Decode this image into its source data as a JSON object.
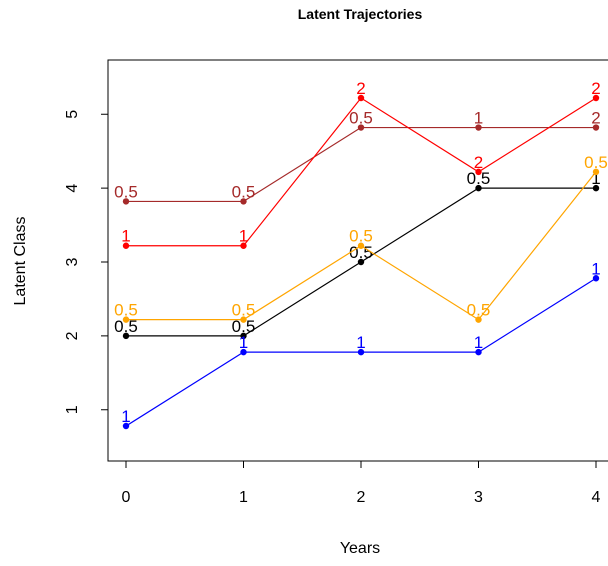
{
  "chart_data": {
    "type": "line",
    "title": "Latent Trajectories",
    "xlabel": "Years",
    "ylabel": "Latent Class",
    "xlim": [
      0,
      4
    ],
    "ylim": [
      0.78,
      5.22
    ],
    "x_ticks": [
      "0",
      "1",
      "2",
      "3",
      "4"
    ],
    "y_ticks": [
      "1",
      "2",
      "3",
      "4",
      "5"
    ],
    "grid": false,
    "legend": "none",
    "series": [
      {
        "color": "#a52a2a",
        "x": [
          0,
          1,
          2,
          3,
          4
        ],
        "y": [
          3.82,
          3.82,
          4.82,
          4.82,
          4.82
        ],
        "labels": [
          "0.5",
          "0.5",
          "0.5",
          "1",
          "2"
        ]
      },
      {
        "color": "#ff0000",
        "x": [
          0,
          1,
          2,
          3,
          4
        ],
        "y": [
          3.22,
          3.22,
          5.22,
          4.22,
          5.22
        ],
        "labels": [
          "1",
          "1",
          "2",
          "2",
          "2"
        ]
      },
      {
        "color": "#000000",
        "x": [
          0,
          1,
          2,
          3,
          4
        ],
        "y": [
          2.0,
          2.0,
          3.0,
          4.0,
          4.0
        ],
        "labels": [
          "0.5",
          "0.5",
          "0.5",
          "0.5",
          "1"
        ]
      },
      {
        "color": "#ffa500",
        "x": [
          0,
          1,
          2,
          3,
          4
        ],
        "y": [
          2.22,
          2.22,
          3.22,
          2.22,
          4.22
        ],
        "labels": [
          "0.5",
          "0.5",
          "0.5",
          "0.5",
          "0.5"
        ]
      },
      {
        "color": "#0000ff",
        "x": [
          0,
          1,
          2,
          3,
          4
        ],
        "y": [
          0.78,
          1.78,
          1.78,
          1.78,
          2.78
        ],
        "labels": [
          "1",
          "1",
          "1",
          "1",
          "1"
        ]
      }
    ]
  }
}
